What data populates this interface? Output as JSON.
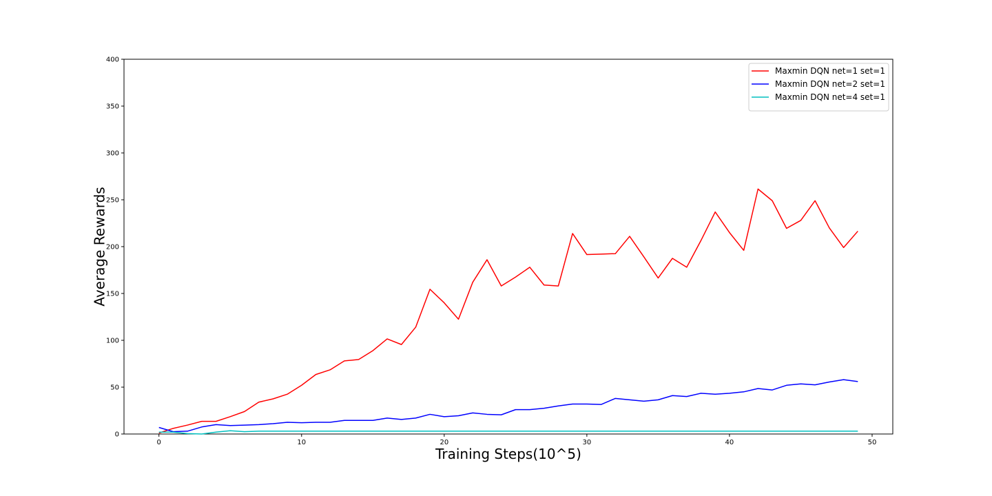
{
  "chart_data": {
    "type": "line",
    "title": "",
    "xlabel": "Training Steps(10^5)",
    "ylabel": "Average Rewards",
    "xlim": [
      -2.45,
      51.45
    ],
    "ylim": [
      0,
      400
    ],
    "xticks": [
      0,
      10,
      20,
      30,
      40,
      50
    ],
    "yticks": [
      0,
      50,
      100,
      150,
      200,
      250,
      300,
      350,
      400
    ],
    "grid": false,
    "legend_position": "upper-right",
    "series": [
      {
        "name": "Maxmin DQN net=1 set=1",
        "color": "#ff0000",
        "x": [
          0,
          1,
          2,
          3,
          4,
          5,
          6,
          7,
          8,
          9,
          10,
          11,
          12,
          13,
          14,
          15,
          16,
          17,
          18,
          19,
          20,
          21,
          22,
          23,
          24,
          25,
          26,
          27,
          28,
          29,
          30,
          31,
          32,
          33,
          34,
          35,
          36,
          37,
          38,
          39,
          40,
          41,
          42,
          43,
          44,
          45,
          46,
          47,
          48,
          49
        ],
        "values": [
          1,
          6,
          9.5,
          13.5,
          13.5,
          18.5,
          24,
          34,
          37.5,
          42.5,
          52,
          63.5,
          68.5,
          78,
          79.5,
          89,
          101.5,
          95.5,
          114,
          154.5,
          140,
          122.5,
          162,
          186,
          158,
          167.5,
          178,
          159,
          158,
          214,
          191.5,
          192,
          192.5,
          211,
          189,
          166.5,
          187.5,
          178,
          206.5,
          237,
          215,
          196,
          261.5,
          249,
          219.5,
          228,
          249,
          220,
          199,
          216.5
        ]
      },
      {
        "name": "Maxmin DQN net=2 set=1",
        "color": "#0000ff",
        "x": [
          0,
          1,
          2,
          3,
          4,
          5,
          6,
          7,
          8,
          9,
          10,
          11,
          12,
          13,
          14,
          15,
          16,
          17,
          18,
          19,
          20,
          21,
          22,
          23,
          24,
          25,
          26,
          27,
          28,
          29,
          30,
          31,
          32,
          33,
          34,
          35,
          36,
          37,
          38,
          39,
          40,
          41,
          42,
          43,
          44,
          45,
          46,
          47,
          48,
          49
        ],
        "values": [
          7,
          2.5,
          3,
          7.5,
          10,
          9,
          9.5,
          10,
          11,
          12.5,
          12,
          12.5,
          12.5,
          14.5,
          14.5,
          14.5,
          17,
          15.5,
          17,
          21,
          18.5,
          19.5,
          22.5,
          21,
          20.5,
          26,
          26,
          27.5,
          30,
          32,
          32,
          31.5,
          38,
          36.5,
          35,
          36.5,
          41,
          40,
          43.5,
          42.5,
          43.5,
          45,
          48.5,
          47,
          52,
          53.5,
          52.5,
          55.5,
          58,
          56
        ]
      },
      {
        "name": "Maxmin DQN net=4 set=1",
        "color": "#00bfbf",
        "x": [
          0,
          1,
          2,
          3,
          4,
          5,
          6,
          7,
          8,
          9,
          10,
          11,
          12,
          13,
          14,
          15,
          16,
          17,
          18,
          19,
          20,
          21,
          22,
          23,
          24,
          25,
          26,
          27,
          28,
          29,
          30,
          31,
          32,
          33,
          34,
          35,
          36,
          37,
          38,
          39,
          40,
          41,
          42,
          43,
          44,
          45,
          46,
          47,
          48,
          49
        ],
        "values": [
          2,
          2,
          0.5,
          0,
          2,
          3.5,
          2.5,
          3,
          3,
          3,
          3,
          3,
          3,
          3,
          3,
          3,
          3,
          3,
          3,
          3,
          3,
          3,
          3,
          3,
          3,
          3,
          3,
          3,
          3,
          3,
          3,
          3,
          3,
          3,
          3,
          3,
          3,
          3,
          3,
          3,
          3,
          3,
          3,
          3,
          3,
          3,
          3,
          3,
          3,
          3
        ]
      }
    ]
  }
}
